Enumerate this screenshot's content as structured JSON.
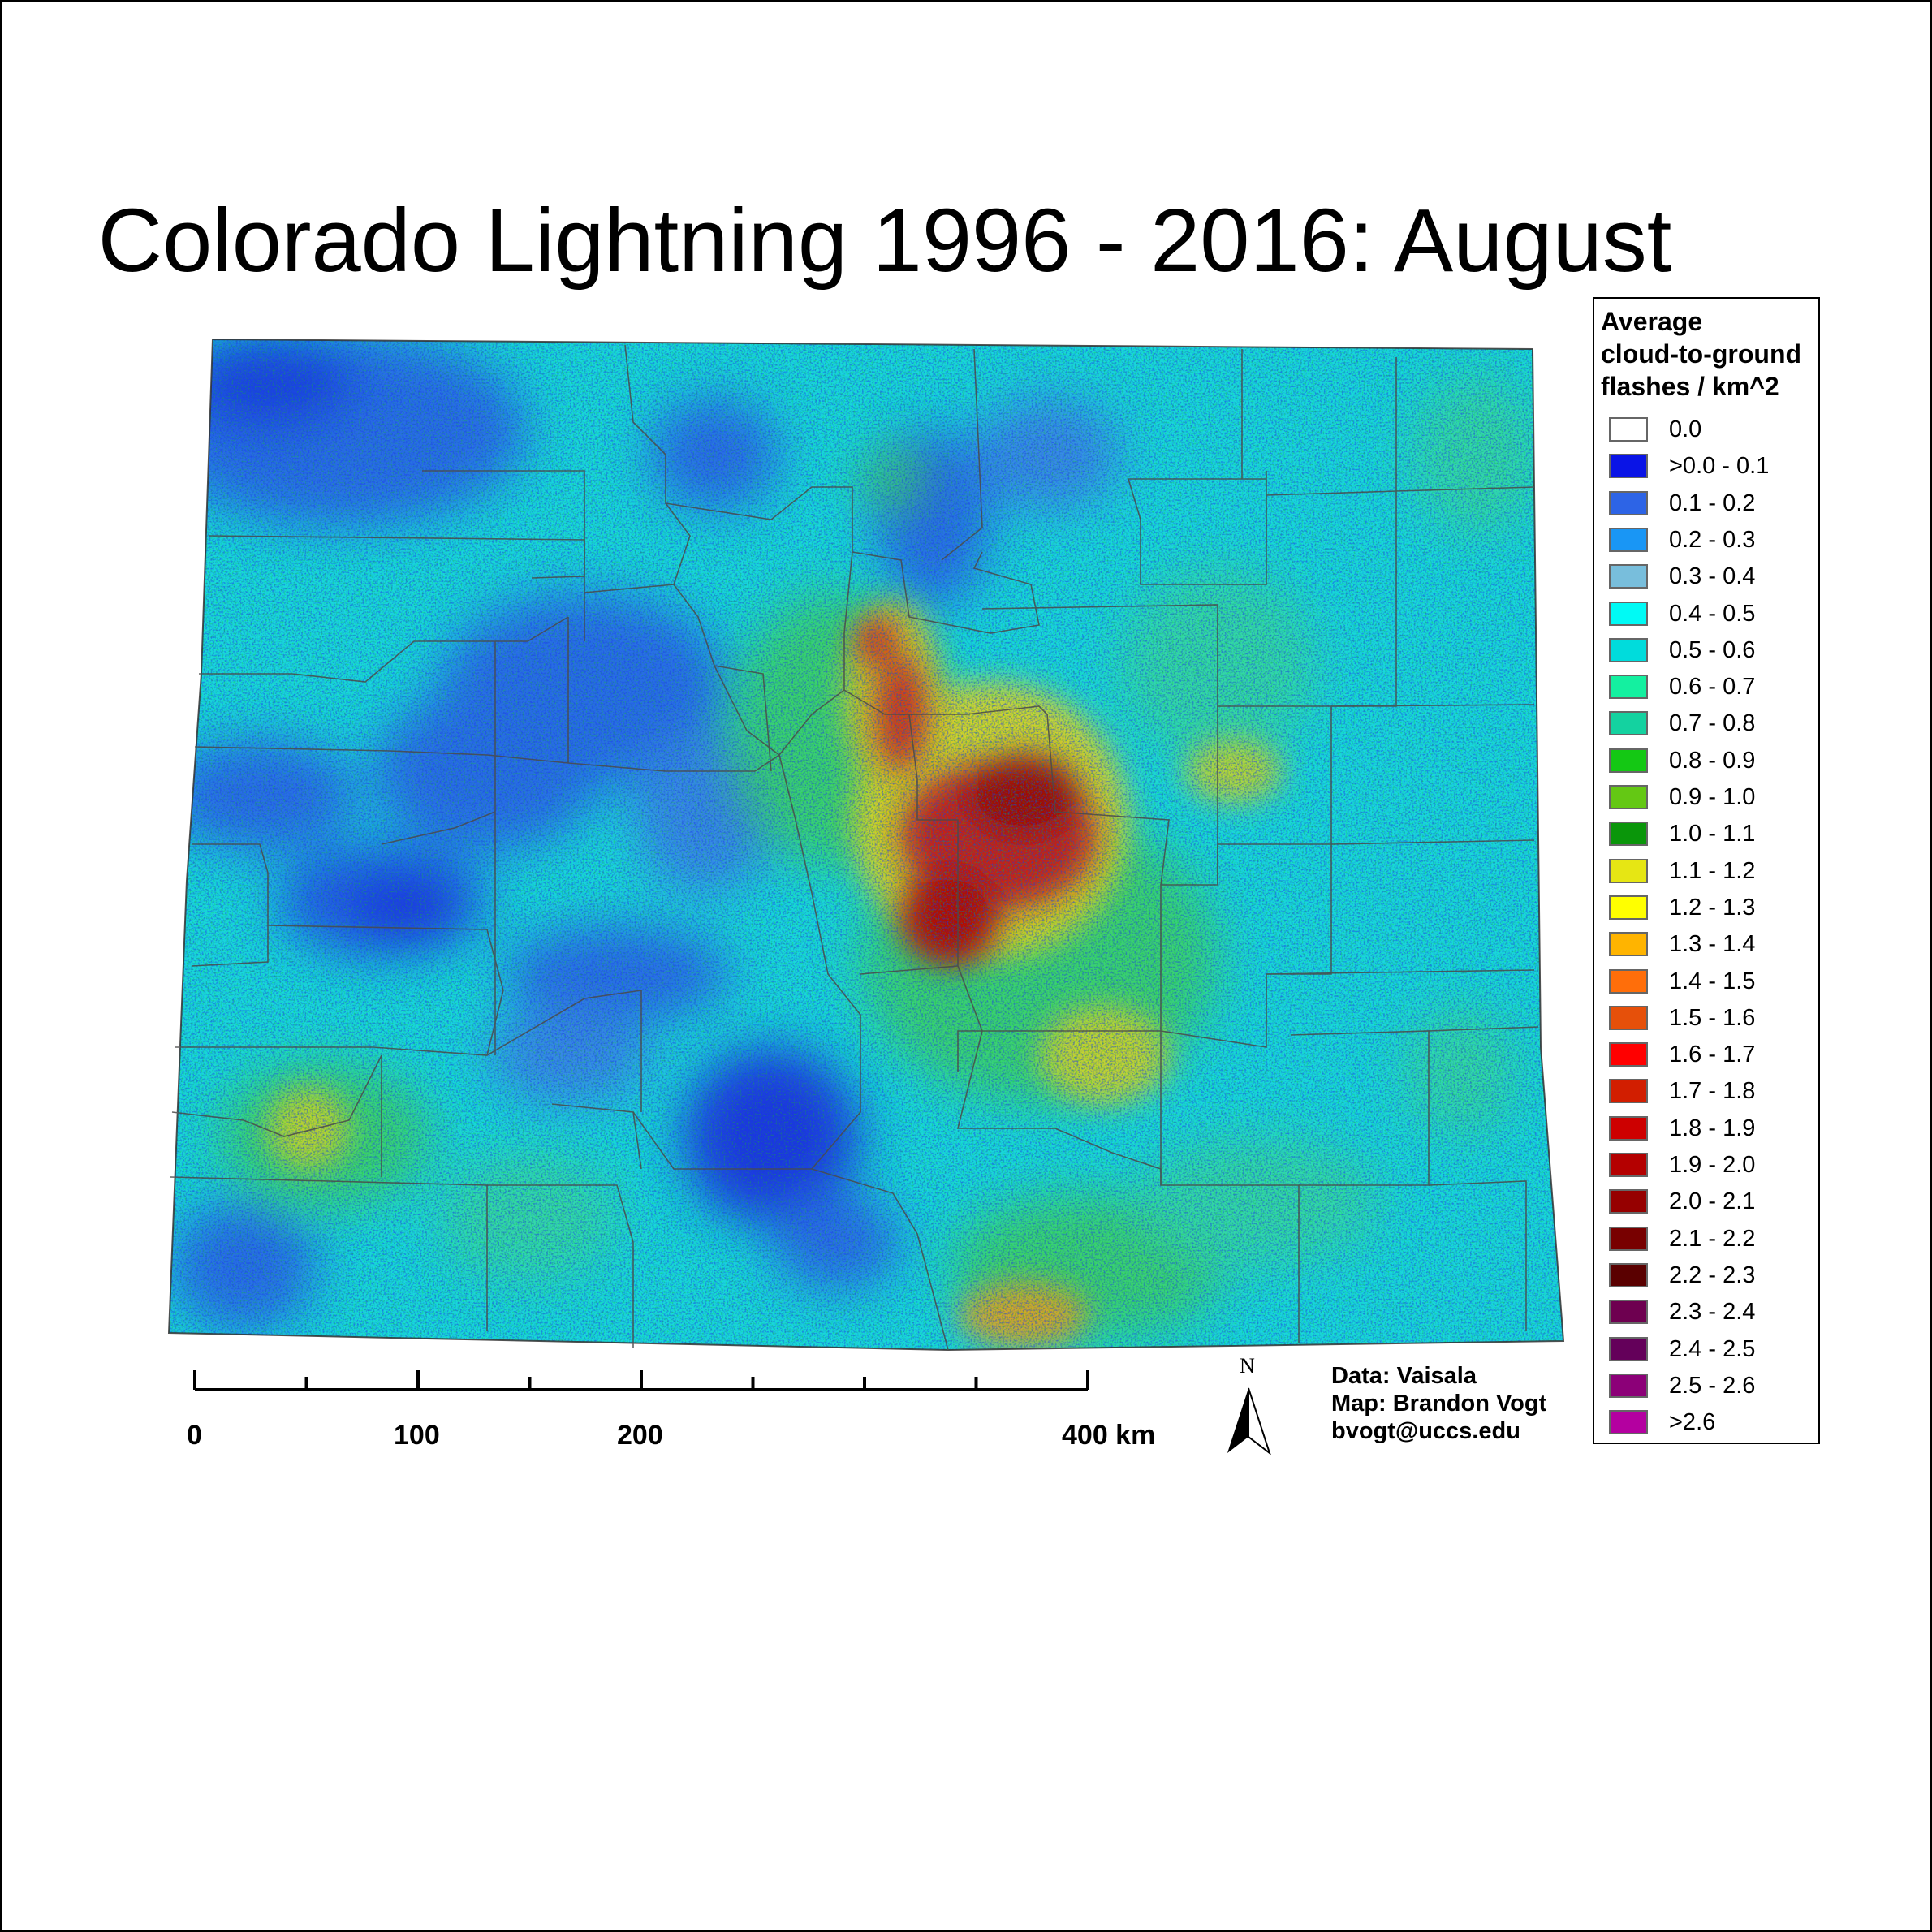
{
  "title": "Colorado Lightning 1996 - 2016:  August",
  "legend": {
    "title": [
      "Average",
      "cloud-to-ground",
      "flashes / km^2"
    ],
    "items": [
      {
        "label": "0.0",
        "color": "#ffffff"
      },
      {
        "label": ">0.0 - 0.1",
        "color": "#0a14e6"
      },
      {
        "label": "0.1 - 0.2",
        "color": "#2d64e6"
      },
      {
        "label": "0.2 - 0.3",
        "color": "#1996f5"
      },
      {
        "label": "0.3 - 0.4",
        "color": "#78bedc"
      },
      {
        "label": "0.4 - 0.5",
        "color": "#00faf5"
      },
      {
        "label": "0.5 - 0.6",
        "color": "#00dcdc"
      },
      {
        "label": "0.6 - 0.7",
        "color": "#14f0a0"
      },
      {
        "label": "0.7 - 0.8",
        "color": "#14d2a0"
      },
      {
        "label": "0.8 - 0.9",
        "color": "#14c814"
      },
      {
        "label": "0.9 - 1.0",
        "color": "#64c814"
      },
      {
        "label": "1.0 - 1.1",
        "color": "#0a960a"
      },
      {
        "label": "1.1 - 1.2",
        "color": "#e6e614"
      },
      {
        "label": "1.2 - 1.3",
        "color": "#ffff00"
      },
      {
        "label": "1.3 - 1.4",
        "color": "#ffb400"
      },
      {
        "label": "1.4 - 1.5",
        "color": "#ff6e0a"
      },
      {
        "label": "1.5 - 1.6",
        "color": "#e6500a"
      },
      {
        "label": "1.6 - 1.7",
        "color": "#ff0000"
      },
      {
        "label": "1.7 - 1.8",
        "color": "#d21e00"
      },
      {
        "label": "1.8 - 1.9",
        "color": "#cd0000"
      },
      {
        "label": "1.9 - 2.0",
        "color": "#b40000"
      },
      {
        "label": "2.0 - 2.1",
        "color": "#960000"
      },
      {
        "label": "2.1 - 2.2",
        "color": "#780000"
      },
      {
        "label": "2.2 - 2.3",
        "color": "#5a0000"
      },
      {
        "label": "2.3 - 2.4",
        "color": "#6e0050"
      },
      {
        "label": "2.4 - 2.5",
        "color": "#64005a"
      },
      {
        "label": "2.5 - 2.6",
        "color": "#8c0078"
      },
      {
        "label": ">2.6",
        "color": "#b400a0"
      }
    ]
  },
  "scale_bar": {
    "labels": [
      "0",
      "100",
      "200",
      "400 km"
    ],
    "label_km": [
      0,
      100,
      200,
      400
    ],
    "max_km": 400,
    "tick_step_km": 50
  },
  "north_arrow": {
    "label": "N",
    "icon": "north-arrow-icon"
  },
  "credits": [
    "Data: Vaisala",
    "Map: Brandon Vogt",
    "bvogt@uccs.edu"
  ]
}
